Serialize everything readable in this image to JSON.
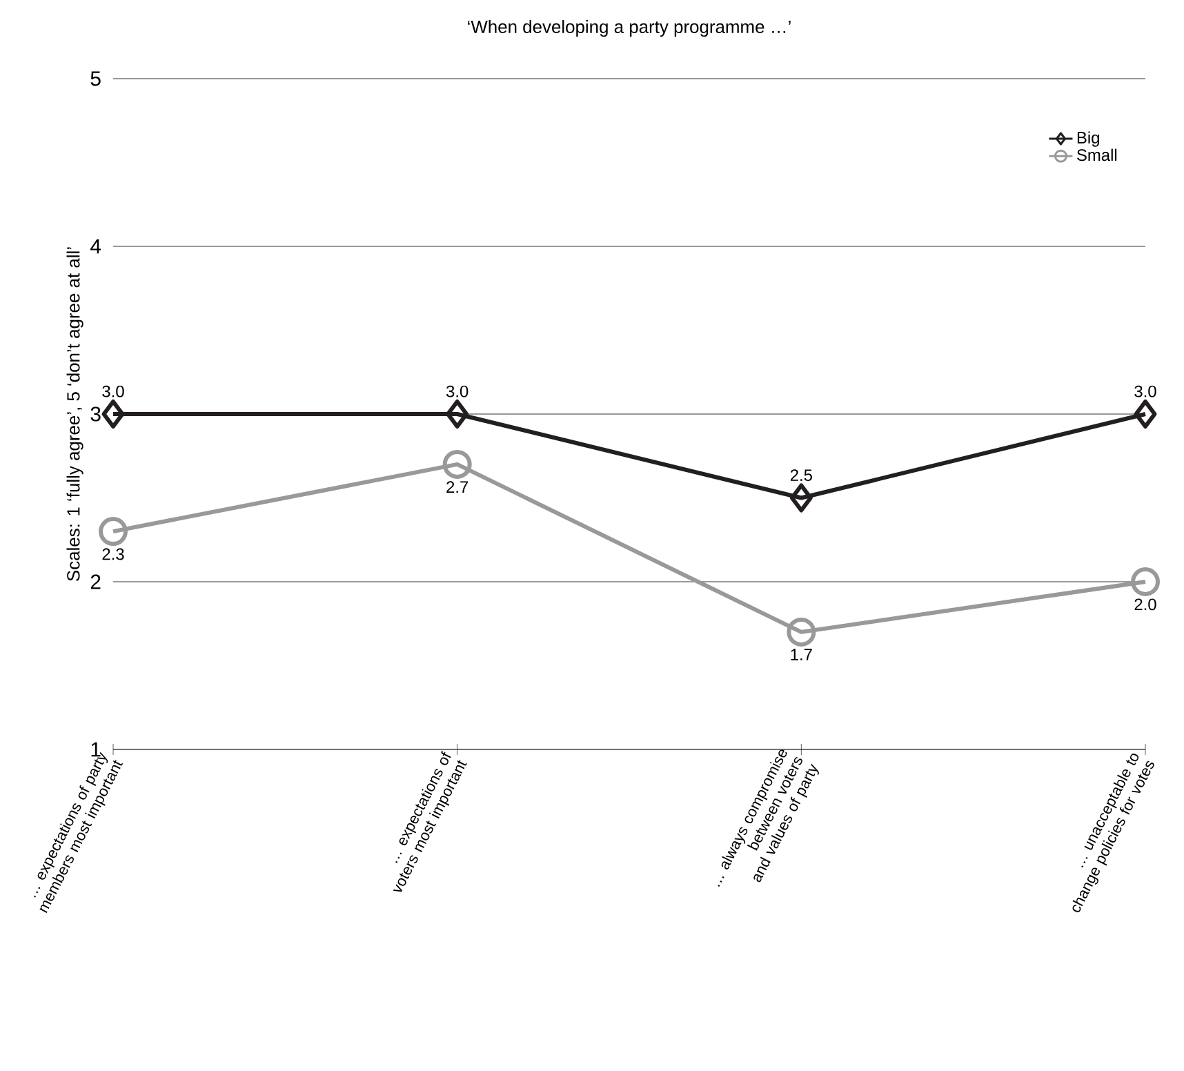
{
  "chart_data": {
    "type": "line",
    "title": "‘When developing a party programme …’",
    "ylabel": "Scales: 1 ‘fully agree’, 5 ‘don’t agree at all’",
    "categories": [
      "… expectations of party members most important",
      "… expectations of voters most important",
      "… always compromise between voters and values of party",
      "… unacceptable to change policies for votes"
    ],
    "series": [
      {
        "name": "Big",
        "color": "#231f20",
        "marker": "diamond",
        "values": [
          3.0,
          3.0,
          2.5,
          3.0
        ],
        "value_labels": [
          "3.0",
          "3.0",
          "2.5",
          "3.0"
        ]
      },
      {
        "name": "Small",
        "color": "#999999",
        "marker": "circle",
        "values": [
          2.3,
          2.7,
          1.7,
          2.0
        ],
        "value_labels": [
          "2.3",
          "2.7",
          "1.7",
          "2.0"
        ]
      }
    ],
    "ylim": [
      1,
      5
    ],
    "yticks": [
      1,
      2,
      3,
      4,
      5
    ],
    "grid": "y",
    "legend": "top right",
    "line_style": "solid"
  }
}
